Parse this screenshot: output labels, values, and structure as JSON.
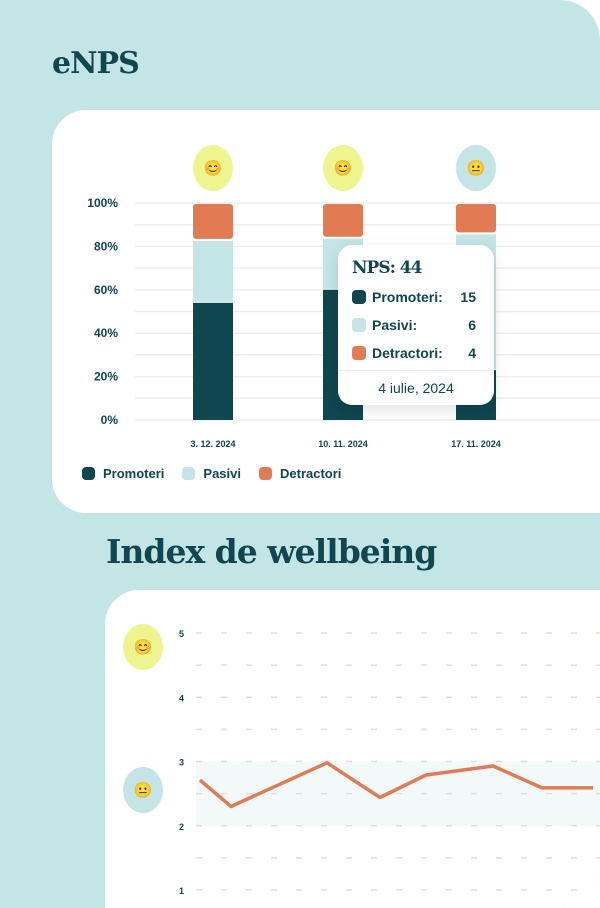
{
  "enps": {
    "title": "eNPS",
    "tooltip": {
      "title": "NPS: 44",
      "rows": [
        {
          "label": "Promoteri:",
          "value": "15"
        },
        {
          "label": "Pasivi:",
          "value": "6"
        },
        {
          "label": "Detractori:",
          "value": "4"
        }
      ],
      "date": "4 iulie, 2024"
    }
  },
  "wellbeing": {
    "title": "Index de wellbeing"
  },
  "colors": {
    "promoteri": "#0f4650",
    "pasivi": "#c3e5e5",
    "detractori": "#e27b52",
    "yellow": "#eef58e",
    "teal": "#c3e5e5",
    "line": "#e27b52"
  },
  "chart_data": [
    {
      "type": "bar",
      "stacked": true,
      "categories": [
        "3. 12. 2024",
        "10. 11. 2024",
        "17. 11. 2024"
      ],
      "series": [
        {
          "name": "Promoteri",
          "values": [
            54,
            60,
            23
          ]
        },
        {
          "name": "Pasivi",
          "values": [
            29,
            24,
            63
          ]
        },
        {
          "name": "Detractori",
          "values": [
            17,
            16,
            14
          ]
        }
      ],
      "yticks": [
        "0%",
        "20%",
        "40%",
        "60%",
        "80%",
        "100%"
      ],
      "ylim": [
        0,
        100
      ],
      "legend": "bottom-left",
      "mood_icons": [
        "happy",
        "happy",
        "neutral"
      ]
    },
    {
      "type": "line",
      "x": [
        1,
        2,
        3,
        4,
        5,
        6,
        7,
        8
      ],
      "values": [
        2.71,
        2.3,
        2.98,
        2.44,
        2.79,
        2.93,
        2.59,
        2.59
      ],
      "yticks": [
        "1",
        "2",
        "3",
        "4",
        "5"
      ],
      "ylim": [
        1,
        5
      ],
      "band": [
        2,
        3
      ],
      "mood_icons": [
        "happy",
        "neutral"
      ]
    }
  ]
}
